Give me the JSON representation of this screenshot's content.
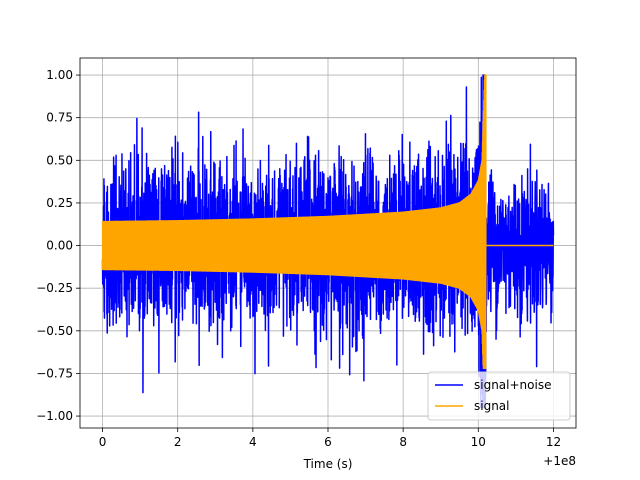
{
  "chart_data": {
    "type": "line",
    "title": "",
    "xlabel": "Time (s)",
    "ylabel": "",
    "x_offset_label": "+1e8",
    "xlim": [
      -0.6,
      12.6
    ],
    "ylim": [
      -1.07,
      1.1
    ],
    "x_ticks": [
      0,
      2,
      4,
      6,
      8,
      10,
      12
    ],
    "x_tick_labels": [
      "0",
      "2",
      "4",
      "6",
      "8",
      "10",
      "12"
    ],
    "y_ticks": [
      -1.0,
      -0.75,
      -0.5,
      -0.25,
      0.0,
      0.25,
      0.5,
      0.75,
      1.0
    ],
    "y_tick_labels": [
      "−1.00",
      "−0.75",
      "−0.50",
      "−0.25",
      "0.00",
      "0.25",
      "0.50",
      "0.75",
      "1.00"
    ],
    "grid": true,
    "legend_position": "bottom-right",
    "series": [
      {
        "name": "signal+noise",
        "color": "#0000ff",
        "x_range": [
          0,
          12
        ],
        "description_values": {
          "max": 1.0,
          "min": -0.95
        }
      },
      {
        "name": "signal",
        "color": "#ffa500",
        "envelope": [
          {
            "x": 0.0,
            "amp": 0.14
          },
          {
            "x": 2.0,
            "amp": 0.145
          },
          {
            "x": 4.0,
            "amp": 0.155
          },
          {
            "x": 6.0,
            "amp": 0.17
          },
          {
            "x": 8.0,
            "amp": 0.195
          },
          {
            "x": 9.0,
            "amp": 0.22
          },
          {
            "x": 9.5,
            "amp": 0.25
          },
          {
            "x": 9.8,
            "amp": 0.3
          },
          {
            "x": 10.0,
            "amp": 0.38
          },
          {
            "x": 10.1,
            "amp": 0.5
          },
          {
            "x": 10.17,
            "amp": 1.0
          }
        ],
        "min": -0.72,
        "end_x": 10.2,
        "post_value": 0.0,
        "post_x_end": 12
      }
    ]
  }
}
